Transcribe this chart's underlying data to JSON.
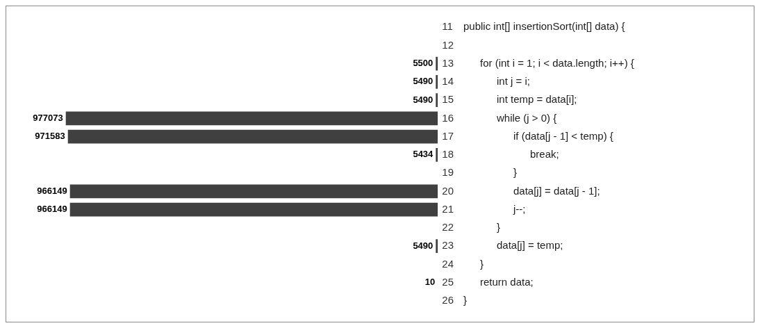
{
  "chart_data": {
    "type": "bar",
    "orientation": "horizontal",
    "categories": [
      "11",
      "12",
      "13",
      "14",
      "15",
      "16",
      "17",
      "18",
      "19",
      "20",
      "21",
      "22",
      "23",
      "24",
      "25",
      "26"
    ],
    "values": [
      null,
      null,
      5500,
      5490,
      5490,
      977073,
      971583,
      5434,
      null,
      966149,
      966149,
      null,
      5490,
      null,
      10,
      null
    ],
    "color": "#404040",
    "data_labels": true,
    "grid": false,
    "legend": false,
    "annotations": [
      "public int[] insertionSort(int[] data) {",
      null,
      "    for (int i = 1; i < data.length; i++) {",
      "        int j = i;",
      "        int temp = data[i];",
      "        while (j > 0) {",
      "            if (data[j - 1] < temp) {",
      "                break;",
      "            }",
      "            data[j] = data[j - 1];",
      "            j--;",
      "        }",
      "        data[j] = temp;",
      "    }",
      "    return data;",
      "}"
    ]
  }
}
